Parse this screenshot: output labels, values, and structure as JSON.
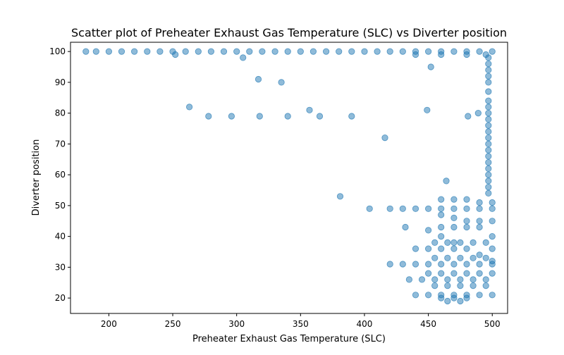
{
  "chart_data": {
    "type": "scatter",
    "title": "Scatter plot of Preheater Exhaust Gas Temperature (SLC) vs Diverter position",
    "xlabel": "Preheater Exhaust Gas Temperature (SLC)",
    "ylabel": "Diverter position",
    "xlim": [
      170,
      512
    ],
    "ylim": [
      15,
      103
    ],
    "x_ticks": [
      200,
      250,
      300,
      350,
      400,
      450,
      500
    ],
    "y_ticks": [
      20,
      30,
      40,
      50,
      60,
      70,
      80,
      90,
      100
    ],
    "grid": false,
    "legend": "none",
    "point_color": "#1f77b4",
    "point_alpha": 0.5,
    "series": [
      {
        "points": [
          [
            182,
            100
          ],
          [
            190,
            100
          ],
          [
            200,
            100
          ],
          [
            210,
            100
          ],
          [
            220,
            100
          ],
          [
            230,
            100
          ],
          [
            240,
            100
          ],
          [
            250,
            100
          ],
          [
            260,
            100
          ],
          [
            270,
            100
          ],
          [
            280,
            100
          ],
          [
            290,
            100
          ],
          [
            300,
            100
          ],
          [
            310,
            100
          ],
          [
            320,
            100
          ],
          [
            330,
            100
          ],
          [
            340,
            100
          ],
          [
            350,
            100
          ],
          [
            360,
            100
          ],
          [
            370,
            100
          ],
          [
            380,
            100
          ],
          [
            390,
            100
          ],
          [
            400,
            100
          ],
          [
            410,
            100
          ],
          [
            420,
            100
          ],
          [
            430,
            100
          ],
          [
            440,
            100
          ],
          [
            450,
            100
          ],
          [
            460,
            100
          ],
          [
            470,
            100
          ],
          [
            480,
            100
          ],
          [
            490,
            100
          ],
          [
            500,
            100
          ],
          [
            440,
            99
          ],
          [
            460,
            99
          ],
          [
            480,
            99
          ],
          [
            495,
            99
          ],
          [
            252,
            99
          ],
          [
            305,
            98
          ],
          [
            317,
            91
          ],
          [
            335,
            90
          ],
          [
            452,
            95
          ],
          [
            263,
            82
          ],
          [
            278,
            79
          ],
          [
            296,
            79
          ],
          [
            318,
            79
          ],
          [
            340,
            79
          ],
          [
            357,
            81
          ],
          [
            365,
            79
          ],
          [
            390,
            79
          ],
          [
            449,
            81
          ],
          [
            489,
            80
          ],
          [
            481,
            79
          ],
          [
            416,
            72
          ],
          [
            464,
            58
          ],
          [
            381,
            53
          ],
          [
            404,
            49
          ],
          [
            432,
            43
          ],
          [
            497,
            98
          ],
          [
            497,
            96
          ],
          [
            497,
            94
          ],
          [
            497,
            92
          ],
          [
            497,
            90
          ],
          [
            497,
            87
          ],
          [
            497,
            84
          ],
          [
            497,
            82
          ],
          [
            497,
            80
          ],
          [
            497,
            78
          ],
          [
            497,
            76
          ],
          [
            497,
            74
          ],
          [
            497,
            72
          ],
          [
            497,
            70
          ],
          [
            497,
            68
          ],
          [
            497,
            66
          ],
          [
            497,
            64
          ],
          [
            497,
            62
          ],
          [
            497,
            60
          ],
          [
            497,
            58
          ],
          [
            497,
            56
          ],
          [
            497,
            54
          ],
          [
            420,
            49
          ],
          [
            430,
            49
          ],
          [
            440,
            49
          ],
          [
            450,
            49
          ],
          [
            460,
            49
          ],
          [
            470,
            49
          ],
          [
            480,
            49
          ],
          [
            490,
            49
          ],
          [
            500,
            49
          ],
          [
            460,
            52
          ],
          [
            470,
            52
          ],
          [
            480,
            52
          ],
          [
            490,
            51
          ],
          [
            500,
            51
          ],
          [
            460,
            47
          ],
          [
            470,
            46
          ],
          [
            480,
            45
          ],
          [
            490,
            45
          ],
          [
            500,
            45
          ],
          [
            450,
            42
          ],
          [
            460,
            40
          ],
          [
            470,
            38
          ],
          [
            480,
            36
          ],
          [
            490,
            34
          ],
          [
            500,
            32
          ],
          [
            440,
            36
          ],
          [
            450,
            36
          ],
          [
            460,
            36
          ],
          [
            470,
            36
          ],
          [
            420,
            31
          ],
          [
            430,
            31
          ],
          [
            440,
            31
          ],
          [
            450,
            31
          ],
          [
            460,
            31
          ],
          [
            470,
            31
          ],
          [
            480,
            31
          ],
          [
            490,
            31
          ],
          [
            500,
            31
          ],
          [
            435,
            26
          ],
          [
            445,
            26
          ],
          [
            455,
            26
          ],
          [
            465,
            26
          ],
          [
            475,
            26
          ],
          [
            485,
            26
          ],
          [
            495,
            26
          ],
          [
            440,
            21
          ],
          [
            450,
            21
          ],
          [
            460,
            21
          ],
          [
            470,
            21
          ],
          [
            480,
            21
          ],
          [
            490,
            21
          ],
          [
            500,
            21
          ],
          [
            455,
            24
          ],
          [
            465,
            24
          ],
          [
            475,
            24
          ],
          [
            485,
            24
          ],
          [
            495,
            24
          ],
          [
            460,
            20
          ],
          [
            470,
            20
          ],
          [
            480,
            20
          ],
          [
            465,
            19
          ],
          [
            475,
            19
          ],
          [
            450,
            28
          ],
          [
            460,
            28
          ],
          [
            470,
            28
          ],
          [
            480,
            28
          ],
          [
            490,
            28
          ],
          [
            500,
            28
          ],
          [
            455,
            33
          ],
          [
            465,
            33
          ],
          [
            475,
            33
          ],
          [
            485,
            33
          ],
          [
            495,
            33
          ],
          [
            455,
            38
          ],
          [
            465,
            38
          ],
          [
            475,
            38
          ],
          [
            485,
            38
          ],
          [
            495,
            38
          ],
          [
            460,
            43
          ],
          [
            470,
            43
          ],
          [
            480,
            43
          ],
          [
            490,
            43
          ],
          [
            500,
            40
          ],
          [
            500,
            36
          ]
        ]
      }
    ]
  }
}
